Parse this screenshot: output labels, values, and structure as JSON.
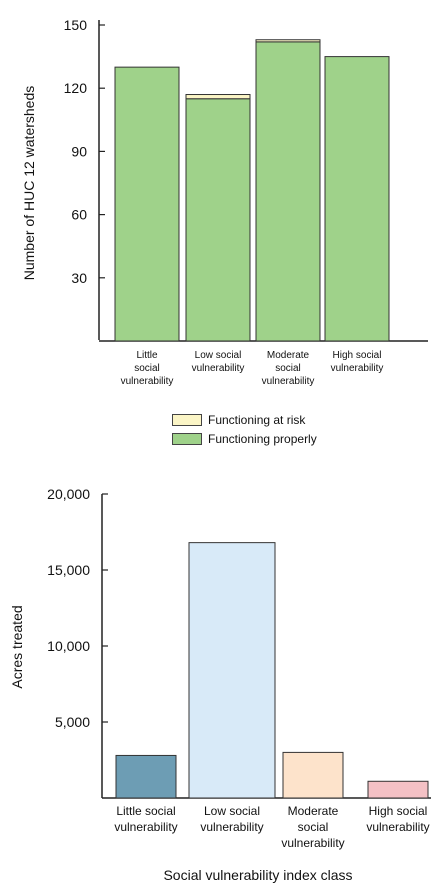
{
  "colors": {
    "functioning_properly": "#9fd28a",
    "functioning_at_risk": "#fbf5c6",
    "little": "#6d9db4",
    "low": "#d8eaf8",
    "moderate": "#fde3cb",
    "high": "#f4c1c5"
  },
  "legend": {
    "at_risk": "Functioning at risk",
    "properly": "Functioning properly"
  },
  "chart_data": [
    {
      "type": "bar",
      "stacked": true,
      "ylabel": "Number of HUC 12 watersheds",
      "ylim": [
        0,
        150
      ],
      "yticks": [
        30,
        60,
        90,
        120,
        150
      ],
      "categories": [
        [
          "Little",
          "social",
          "vulnerability"
        ],
        [
          "Low social",
          "vulnerability"
        ],
        [
          "Moderate",
          "social",
          "vulnerability"
        ],
        [
          "High social",
          "vulnerability"
        ]
      ],
      "series": [
        {
          "name": "Functioning properly",
          "values": [
            130,
            115,
            142,
            135
          ]
        },
        {
          "name": "Functioning at risk",
          "values": [
            0,
            2,
            1,
            0
          ]
        }
      ]
    },
    {
      "type": "bar",
      "ylabel": "Acres treated",
      "xlabel": "Social vulnerability index class",
      "ylim": [
        0,
        20000
      ],
      "yticks": [
        5000,
        10000,
        15000,
        20000
      ],
      "ytick_labels": [
        "5,000",
        "10,000",
        "15,000",
        "20,000"
      ],
      "categories": [
        [
          "Little social",
          "vulnerability"
        ],
        [
          "Low social",
          "vulnerability"
        ],
        [
          "Moderate",
          "social",
          "vulnerability"
        ],
        [
          "High social",
          "vulnerability"
        ]
      ],
      "values": [
        2800,
        16800,
        3000,
        1100
      ]
    }
  ]
}
